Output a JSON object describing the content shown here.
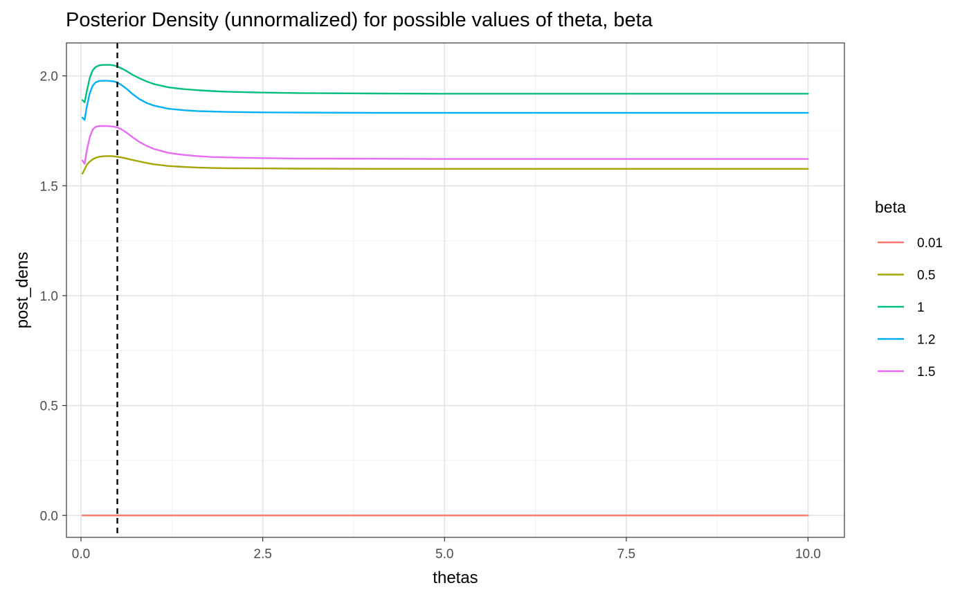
{
  "chart_data": {
    "type": "line",
    "title": "Posterior Density (unnormalized) for possible values of theta, beta",
    "xlabel": "thetas",
    "ylabel": "post_dens",
    "xlim": [
      -0.2,
      10.5
    ],
    "ylim": [
      -0.1,
      2.15
    ],
    "xticks": [
      0,
      2.5,
      5,
      7.5,
      10
    ],
    "xtick_labels": [
      "0.0",
      "2.5",
      "5.0",
      "7.5",
      "10.0"
    ],
    "yticks": [
      0,
      0.5,
      1,
      1.5,
      2
    ],
    "ytick_labels": [
      "0.0",
      "0.5",
      "1.0",
      "1.5",
      "2.0"
    ],
    "grid": true,
    "vline": {
      "x": 0.5,
      "style": "dashed",
      "color": "#000000"
    },
    "legend": {
      "title": "beta",
      "placement": "right"
    },
    "x": [
      0.02,
      0.05,
      0.08,
      0.12,
      0.16,
      0.2,
      0.25,
      0.3,
      0.35,
      0.4,
      0.45,
      0.5,
      0.55,
      0.6,
      0.65,
      0.7,
      0.8,
      0.9,
      1.0,
      1.2,
      1.4,
      1.6,
      1.8,
      2.0,
      2.5,
      3.0,
      4.0,
      5.0,
      6.0,
      7.0,
      8.0,
      9.0,
      10.0
    ],
    "series": [
      {
        "name": "0.01",
        "color": "#F8766D",
        "values": [
          0,
          0,
          0,
          0,
          0,
          0,
          0,
          0,
          0,
          0,
          0,
          0,
          0,
          0,
          0,
          0,
          0,
          0,
          0,
          0,
          0,
          0,
          0,
          0,
          0,
          0,
          0,
          0,
          0,
          0,
          0,
          0,
          0
        ]
      },
      {
        "name": "0.5",
        "color": "#A3A500",
        "values": [
          1.555,
          1.575,
          1.595,
          1.61,
          1.62,
          1.627,
          1.632,
          1.634,
          1.635,
          1.635,
          1.634,
          1.632,
          1.629,
          1.626,
          1.622,
          1.618,
          1.611,
          1.604,
          1.598,
          1.59,
          1.586,
          1.583,
          1.581,
          1.58,
          1.579,
          1.578,
          1.577,
          1.577,
          1.577,
          1.577,
          1.577,
          1.577,
          1.577
        ]
      },
      {
        "name": "1",
        "color": "#00BF7D",
        "values": [
          1.89,
          1.88,
          1.93,
          1.99,
          2.025,
          2.04,
          2.048,
          2.05,
          2.05,
          2.05,
          2.048,
          2.043,
          2.035,
          2.027,
          2.017,
          2.007,
          1.99,
          1.975,
          1.963,
          1.948,
          1.94,
          1.935,
          1.931,
          1.928,
          1.924,
          1.922,
          1.92,
          1.919,
          1.919,
          1.919,
          1.919,
          1.919,
          1.919
        ]
      },
      {
        "name": "1.2",
        "color": "#00B0F6",
        "values": [
          1.81,
          1.8,
          1.86,
          1.92,
          1.955,
          1.97,
          1.977,
          1.978,
          1.978,
          1.977,
          1.975,
          1.97,
          1.96,
          1.948,
          1.935,
          1.92,
          1.895,
          1.877,
          1.865,
          1.851,
          1.844,
          1.84,
          1.838,
          1.836,
          1.834,
          1.833,
          1.832,
          1.832,
          1.832,
          1.832,
          1.832,
          1.832,
          1.832
        ]
      },
      {
        "name": "1.5",
        "color": "#E76BF3",
        "values": [
          1.615,
          1.6,
          1.66,
          1.72,
          1.755,
          1.768,
          1.772,
          1.772,
          1.772,
          1.771,
          1.769,
          1.766,
          1.758,
          1.748,
          1.736,
          1.723,
          1.7,
          1.682,
          1.668,
          1.65,
          1.641,
          1.635,
          1.631,
          1.629,
          1.626,
          1.624,
          1.623,
          1.622,
          1.622,
          1.622,
          1.622,
          1.622,
          1.622
        ]
      }
    ]
  }
}
